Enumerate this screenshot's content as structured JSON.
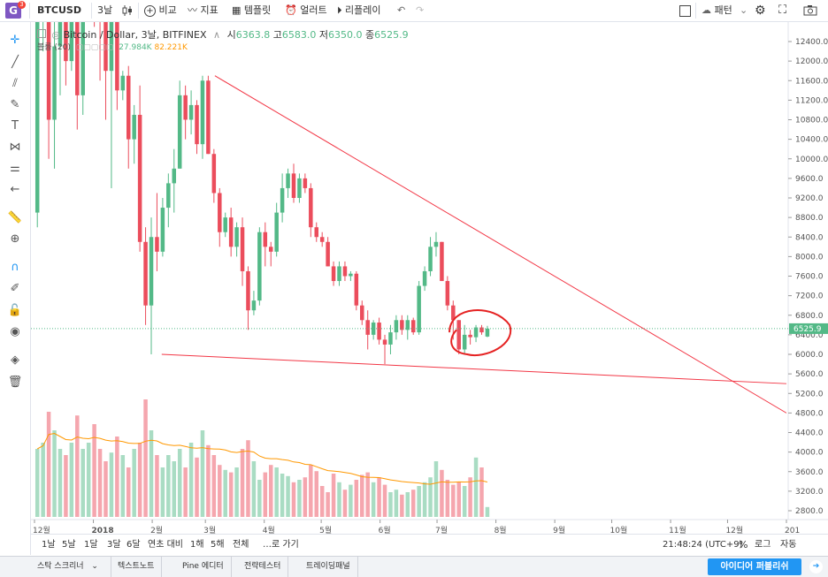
{
  "header": {
    "logo_letter": "G",
    "logo_badge": "3",
    "symbol": "BTCUSD",
    "interval": "3날",
    "compare": "비교",
    "indicators": "지표",
    "templates": "템플릿",
    "alert": "얼러트",
    "replay": "리플레이",
    "pattern": "패턴"
  },
  "legend": {
    "title": "Bitcoin / Dollar, 3날, BITFINEX",
    "o_label": "시",
    "o_value": "6363.8",
    "h_label": "고",
    "h_value": "6583.0",
    "l_label": "저",
    "l_value": "6350.0",
    "c_label": "종",
    "c_value": "6525.9",
    "volume_label": "볼륨 (20)",
    "volume_value": "27.984K",
    "volume_ma": "82.221K"
  },
  "price_axis": {
    "ticks": [
      "12400.0",
      "12000.0",
      "11600.0",
      "11200.0",
      "10800.0",
      "10400.0",
      "10000.0",
      "9600.0",
      "9200.0",
      "8800.0",
      "8400.0",
      "8000.0",
      "7600.0",
      "7200.0",
      "6800.0",
      "6400.0",
      "6000.0",
      "5600.0",
      "5200.0",
      "4800.0",
      "4400.0",
      "4000.0",
      "3600.0",
      "3200.0",
      "2800.0"
    ],
    "current_price": "6525.9"
  },
  "time_axis": {
    "labels": [
      "12월",
      "2018",
      "2월",
      "3월",
      "4월",
      "5월",
      "6월",
      "7월",
      "8월",
      "9월",
      "10월",
      "11월",
      "12월",
      "201"
    ]
  },
  "bottom_bar": {
    "ranges": [
      "1날",
      "5날",
      "1달",
      "3달",
      "6달",
      "연초 대비",
      "1해",
      "5해",
      "전체"
    ],
    "goto": "…로 가기",
    "clock": "21:48:24 (UTC+9)",
    "percent": "%",
    "log": "로그",
    "auto": "자동"
  },
  "footer": {
    "tabs": [
      "스탁 스크리너",
      "텍스트노트",
      "Pine 에디터",
      "전략테스터",
      "트레이딩패널"
    ],
    "publish": "아이디어 퍼블리쉬"
  },
  "colors": {
    "up": "#53b987",
    "down": "#eb4d5c",
    "up_volume": "#a9dcc3",
    "down_volume": "#f5a6ae",
    "trendline": "#f23645",
    "volume_ma": "#ff9800",
    "price_label_bg": "#53b987"
  },
  "icons": {
    "logo": "tradingview-logo",
    "compare": "plus-circle-icon",
    "indicators": "wave-icon",
    "templates": "template-icon",
    "alert": "alarm-clock-icon",
    "replay": "replay-icon",
    "undo": "undo-icon",
    "redo": "redo-icon",
    "layout": "square-icon",
    "pattern": "cloud-icon",
    "settings": "gear-icon",
    "fullscreen": "fullscreen-icon",
    "snapshot": "camera-icon"
  },
  "chart_data": {
    "type": "candlestick",
    "title": "Bitcoin / Dollar, 3날, BITFINEX",
    "ylim": [
      2600,
      12700
    ],
    "x_range_months": [
      "2017-12",
      "2019-01"
    ],
    "candles_ohlc": [
      [
        8900,
        13200,
        8600,
        12800
      ],
      [
        12800,
        15000,
        12200,
        14500
      ],
      [
        14500,
        15800,
        10000,
        10800
      ],
      [
        10800,
        13500,
        9800,
        12300
      ],
      [
        12300,
        15200,
        11300,
        14600
      ],
      [
        14600,
        14900,
        11500,
        12000
      ],
      [
        12000,
        13900,
        11800,
        13300
      ],
      [
        13300,
        13400,
        10600,
        11300
      ],
      [
        11300,
        14900,
        10900,
        14500
      ],
      [
        14500,
        17100,
        13700,
        15700
      ],
      [
        15700,
        16200,
        12700,
        13500
      ],
      [
        13500,
        15200,
        11600,
        12900
      ],
      [
        12900,
        14200,
        10800,
        11800
      ],
      [
        11800,
        14400,
        9400,
        13900
      ],
      [
        13900,
        14000,
        11000,
        11400
      ],
      [
        11400,
        11800,
        11200,
        11700
      ],
      [
        11700,
        11900,
        9800,
        10400
      ],
      [
        10400,
        11100,
        9900,
        10900
      ],
      [
        10900,
        11500,
        8100,
        8300
      ],
      [
        8300,
        8600,
        6600,
        7000
      ],
      [
        7000,
        8800,
        6000,
        8400
      ],
      [
        8400,
        9300,
        7700,
        8100
      ],
      [
        8100,
        9200,
        8000,
        9000
      ],
      [
        9000,
        9700,
        8600,
        9500
      ],
      [
        9500,
        10200,
        8900,
        9800
      ],
      [
        9800,
        11600,
        9800,
        11300
      ],
      [
        11300,
        11500,
        10400,
        10800
      ],
      [
        10800,
        11400,
        10500,
        11100
      ],
      [
        11100,
        11200,
        10100,
        10300
      ],
      [
        10300,
        11700,
        10000,
        11600
      ],
      [
        11600,
        11700,
        10100,
        10100
      ],
      [
        10100,
        10200,
        9100,
        9300
      ],
      [
        9300,
        9400,
        8200,
        8500
      ],
      [
        8500,
        8900,
        8400,
        8800
      ],
      [
        8800,
        9000,
        8000,
        8200
      ],
      [
        8200,
        8700,
        8000,
        8600
      ],
      [
        8600,
        8800,
        7400,
        7700
      ],
      [
        7700,
        7800,
        6500,
        6900
      ],
      [
        6900,
        7300,
        6800,
        7100
      ],
      [
        7100,
        8600,
        7000,
        8500
      ],
      [
        8500,
        8700,
        7800,
        8200
      ],
      [
        8200,
        8300,
        7800,
        8100
      ],
      [
        8100,
        9100,
        8000,
        8900
      ],
      [
        8900,
        9700,
        8700,
        9400
      ],
      [
        9400,
        9800,
        9200,
        9700
      ],
      [
        9700,
        9900,
        9100,
        9200
      ],
      [
        9200,
        9700,
        9100,
        9600
      ],
      [
        9600,
        9700,
        9300,
        9400
      ],
      [
        9400,
        9500,
        8400,
        8600
      ],
      [
        8600,
        8700,
        8300,
        8400
      ],
      [
        8400,
        8500,
        8200,
        8300
      ],
      [
        8300,
        8400,
        7800,
        7800
      ],
      [
        7800,
        7900,
        7400,
        7500
      ],
      [
        7500,
        7900,
        7400,
        7800
      ],
      [
        7800,
        7900,
        7500,
        7600
      ],
      [
        7600,
        7700,
        7500,
        7650
      ],
      [
        7650,
        7700,
        6900,
        7000
      ],
      [
        7000,
        7100,
        6600,
        6700
      ],
      [
        6700,
        6900,
        6100,
        6400
      ],
      [
        6400,
        6700,
        6300,
        6650
      ],
      [
        6650,
        6750,
        6200,
        6300
      ],
      [
        6300,
        6400,
        5800,
        6200
      ],
      [
        6200,
        6600,
        6000,
        6450
      ],
      [
        6450,
        6800,
        6300,
        6700
      ],
      [
        6700,
        6800,
        6400,
        6500
      ],
      [
        6500,
        6800,
        6300,
        6700
      ],
      [
        6700,
        6750,
        6400,
        6450
      ],
      [
        6450,
        7500,
        6400,
        7400
      ],
      [
        7400,
        7800,
        7300,
        7700
      ],
      [
        7700,
        8400,
        7600,
        8200
      ],
      [
        8200,
        8500,
        8000,
        8300
      ],
      [
        8300,
        8300,
        7500,
        7500
      ],
      [
        7500,
        7600,
        6900,
        7000
      ],
      [
        7000,
        7100,
        6300,
        6700
      ],
      [
        6700,
        6700,
        6000,
        6100
      ],
      [
        6100,
        6600,
        6000,
        6400
      ],
      [
        6400,
        6500,
        6200,
        6350
      ],
      [
        6350,
        6600,
        6250,
        6550
      ],
      [
        6550,
        6600,
        6400,
        6450
      ],
      [
        6363.8,
        6583,
        6350,
        6525.9
      ]
    ],
    "volume_bars": [
      0.55,
      0.6,
      0.85,
      0.7,
      0.55,
      0.5,
      0.6,
      0.82,
      0.55,
      0.6,
      0.75,
      0.55,
      0.45,
      0.52,
      0.65,
      0.5,
      0.4,
      0.55,
      0.6,
      0.95,
      0.7,
      0.5,
      0.4,
      0.5,
      0.45,
      0.55,
      0.4,
      0.6,
      0.48,
      0.7,
      0.58,
      0.5,
      0.42,
      0.38,
      0.36,
      0.4,
      0.55,
      0.62,
      0.45,
      0.3,
      0.36,
      0.42,
      0.4,
      0.35,
      0.33,
      0.28,
      0.3,
      0.32,
      0.42,
      0.37,
      0.25,
      0.2,
      0.35,
      0.28,
      0.22,
      0.26,
      0.3,
      0.34,
      0.36,
      0.28,
      0.32,
      0.26,
      0.2,
      0.22,
      0.18,
      0.2,
      0.22,
      0.25,
      0.28,
      0.32,
      0.45,
      0.38,
      0.3,
      0.26,
      0.28,
      0.25,
      0.32,
      0.48,
      0.4,
      0.08
    ],
    "trendlines": [
      {
        "from": [
          "2018-03-06",
          11700
        ],
        "to": [
          "2019-01-01",
          4800
        ]
      },
      {
        "from": [
          "2018-02-06",
          6000
        ],
        "to": [
          "2019-01-01",
          5400
        ]
      }
    ],
    "annotation": "red-circle-highlight"
  }
}
